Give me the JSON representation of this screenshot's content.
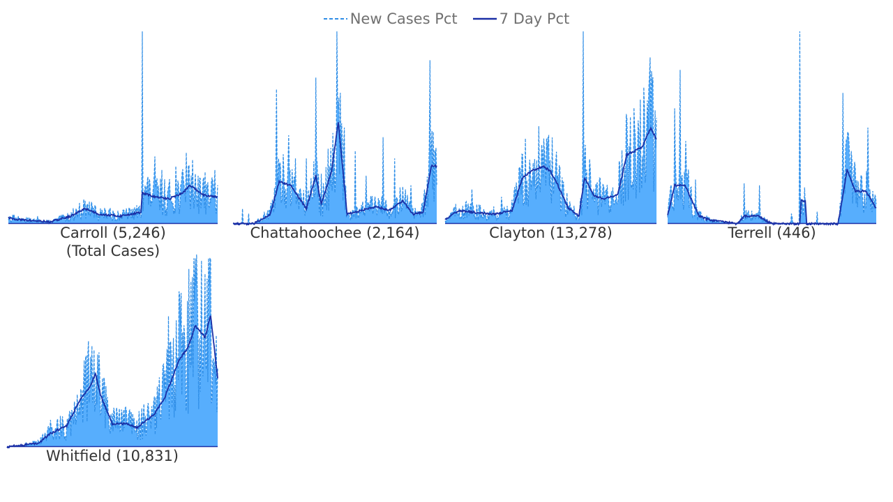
{
  "legend": {
    "new_cases_label": "New Cases Pct",
    "seven_day_label": "7 Day Pct"
  },
  "colors": {
    "area_fill": "#57aefd",
    "new_cases_line": "#2e8de6",
    "seven_day_line": "#1a2fa6",
    "label_text": "#333333",
    "legend_text": "#707070"
  },
  "chart_data": {
    "type": "area",
    "layout": "small-multiples",
    "x_index_days": 300,
    "y_axis_visible": false,
    "gridlines": false,
    "series_names": [
      "New Cases Pct",
      "7 Day Pct"
    ],
    "panels": [
      {
        "id": "carroll",
        "label": "Carroll (5,246)",
        "sublabel": "(Total Cases)",
        "baseline": 0.02,
        "trend_7day": [
          [
            0,
            0.03
          ],
          [
            20,
            0.02
          ],
          [
            60,
            0.01
          ],
          [
            90,
            0.04
          ],
          [
            110,
            0.08
          ],
          [
            130,
            0.05
          ],
          [
            160,
            0.04
          ],
          [
            190,
            0.06
          ],
          [
            192,
            0.16
          ],
          [
            210,
            0.14
          ],
          [
            230,
            0.13
          ],
          [
            250,
            0.16
          ],
          [
            260,
            0.2
          ],
          [
            280,
            0.15
          ],
          [
            300,
            0.14
          ]
        ],
        "new_cases_spikes": [
          [
            8,
            0.05
          ],
          [
            26,
            0.03
          ],
          [
            42,
            0.04
          ],
          [
            110,
            0.12
          ],
          [
            120,
            0.1
          ],
          [
            132,
            0.08
          ],
          [
            150,
            0.07
          ],
          [
            170,
            0.06
          ],
          [
            192,
            1.0
          ],
          [
            210,
            0.35
          ],
          [
            220,
            0.28
          ],
          [
            240,
            0.3
          ],
          [
            255,
            0.37
          ],
          [
            268,
            0.26
          ],
          [
            282,
            0.27
          ],
          [
            296,
            0.28
          ]
        ]
      },
      {
        "id": "chattahoochee",
        "label": "Chattahoochee (2,164)",
        "baseline": 0.0,
        "trend_7day": [
          [
            0,
            0.0
          ],
          [
            30,
            0.0
          ],
          [
            55,
            0.05
          ],
          [
            68,
            0.22
          ],
          [
            85,
            0.2
          ],
          [
            100,
            0.12
          ],
          [
            108,
            0.08
          ],
          [
            122,
            0.25
          ],
          [
            130,
            0.1
          ],
          [
            145,
            0.27
          ],
          [
            155,
            0.53
          ],
          [
            168,
            0.05
          ],
          [
            190,
            0.07
          ],
          [
            210,
            0.09
          ],
          [
            230,
            0.07
          ],
          [
            250,
            0.12
          ],
          [
            265,
            0.05
          ],
          [
            280,
            0.06
          ],
          [
            292,
            0.3
          ]
        ],
        "new_cases_spikes": [
          [
            64,
            0.7
          ],
          [
            70,
            0.3
          ],
          [
            82,
            0.46
          ],
          [
            92,
            0.34
          ],
          [
            108,
            0.34
          ],
          [
            122,
            0.76
          ],
          [
            130,
            0.26
          ],
          [
            140,
            0.39
          ],
          [
            153,
            1.0
          ],
          [
            164,
            0.5
          ],
          [
            180,
            0.38
          ],
          [
            196,
            0.25
          ],
          [
            221,
            0.45
          ],
          [
            238,
            0.34
          ],
          [
            262,
            0.2
          ],
          [
            290,
            0.85
          ]
        ]
      },
      {
        "id": "clayton",
        "label": "Clayton (13,278)",
        "baseline": 0.01,
        "trend_7day": [
          [
            0,
            0.02
          ],
          [
            20,
            0.07
          ],
          [
            40,
            0.06
          ],
          [
            70,
            0.05
          ],
          [
            95,
            0.07
          ],
          [
            110,
            0.24
          ],
          [
            125,
            0.28
          ],
          [
            140,
            0.3
          ],
          [
            150,
            0.27
          ],
          [
            160,
            0.2
          ],
          [
            175,
            0.08
          ],
          [
            190,
            0.04
          ],
          [
            198,
            0.24
          ],
          [
            210,
            0.15
          ],
          [
            225,
            0.13
          ],
          [
            245,
            0.15
          ],
          [
            258,
            0.36
          ],
          [
            270,
            0.38
          ],
          [
            280,
            0.4
          ],
          [
            292,
            0.5
          ],
          [
            302,
            0.42
          ]
        ],
        "new_cases_spikes": [
          [
            38,
            0.18
          ],
          [
            80,
            0.14
          ],
          [
            110,
            0.36
          ],
          [
            130,
            0.33
          ],
          [
            157,
            0.32
          ],
          [
            196,
            1.0
          ],
          [
            225,
            0.2
          ],
          [
            258,
            0.55
          ],
          [
            270,
            0.45
          ],
          [
            282,
            0.71
          ],
          [
            290,
            0.77
          ],
          [
            300,
            0.55
          ]
        ]
      },
      {
        "id": "terrell",
        "label": "Terrell (446)",
        "baseline": 0.0,
        "trend_7day": [
          [
            0,
            0.04
          ],
          [
            10,
            0.2
          ],
          [
            25,
            0.2
          ],
          [
            45,
            0.04
          ],
          [
            60,
            0.02
          ],
          [
            100,
            0.0
          ],
          [
            110,
            0.04
          ],
          [
            130,
            0.04
          ],
          [
            150,
            0.0
          ],
          [
            190,
            0.0
          ],
          [
            192,
            0.12
          ],
          [
            198,
            0.12
          ],
          [
            200,
            0.0
          ],
          [
            245,
            0.0
          ],
          [
            258,
            0.28
          ],
          [
            270,
            0.17
          ],
          [
            285,
            0.17
          ],
          [
            300,
            0.08
          ]
        ],
        "new_cases_spikes": [
          [
            10,
            0.6
          ],
          [
            18,
            0.8
          ],
          [
            26,
            0.43
          ],
          [
            40,
            0.23
          ],
          [
            110,
            0.21
          ],
          [
            132,
            0.2
          ],
          [
            190,
            1.0
          ],
          [
            252,
            0.68
          ],
          [
            270,
            0.28
          ],
          [
            288,
            0.5
          ]
        ]
      },
      {
        "id": "whitfield",
        "label": "Whitfield (10,831)",
        "baseline": 0.0,
        "trend_7day": [
          [
            0,
            0.0
          ],
          [
            45,
            0.02
          ],
          [
            62,
            0.07
          ],
          [
            85,
            0.11
          ],
          [
            105,
            0.25
          ],
          [
            118,
            0.31
          ],
          [
            126,
            0.38
          ],
          [
            133,
            0.27
          ],
          [
            150,
            0.12
          ],
          [
            170,
            0.12
          ],
          [
            185,
            0.1
          ],
          [
            210,
            0.17
          ],
          [
            225,
            0.26
          ],
          [
            245,
            0.45
          ],
          [
            258,
            0.52
          ],
          [
            268,
            0.63
          ],
          [
            282,
            0.57
          ],
          [
            290,
            0.68
          ],
          [
            300,
            0.36
          ]
        ],
        "new_cases_spikes": [
          [
            62,
            0.14
          ],
          [
            110,
            0.45
          ],
          [
            116,
            0.55
          ],
          [
            129,
            0.48
          ],
          [
            160,
            0.2
          ],
          [
            208,
            0.2
          ],
          [
            230,
            0.68
          ],
          [
            247,
            0.63
          ],
          [
            262,
            0.86
          ],
          [
            270,
            1.0
          ],
          [
            282,
            0.9
          ],
          [
            288,
            0.84
          ],
          [
            298,
            0.58
          ]
        ]
      }
    ]
  }
}
